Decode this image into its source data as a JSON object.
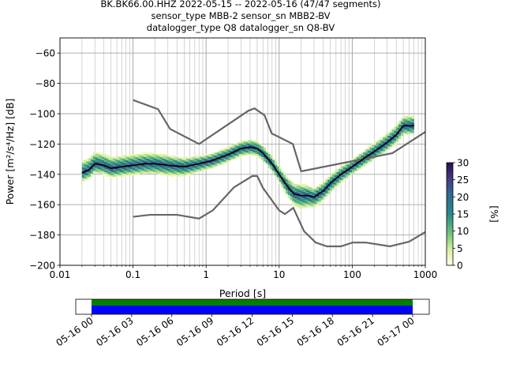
{
  "chart_data": {
    "type": "heatmap",
    "title_lines": [
      "BK.BK66.00.HHZ   2022-05-15 -- 2022-05-16  (47/47 segments)",
      "sensor_type MBB-2 sensor_sn MBB2-BV",
      "datalogger_type Q8 datalogger_sn Q8-BV"
    ],
    "xlabel": "Period [s]",
    "ylabel": "Power [m²/s⁴/Hz] [dB]",
    "xscale": "log",
    "xlim": [
      0.01,
      1000
    ],
    "ylim": [
      -200,
      -50
    ],
    "x_ticks": [
      0.01,
      0.1,
      1,
      10,
      100,
      1000
    ],
    "x_tick_labels": [
      "0.01",
      "0.1",
      "1",
      "10",
      "100",
      "1000"
    ],
    "y_ticks": [
      -200,
      -180,
      -160,
      -140,
      -120,
      -100,
      -80,
      -60
    ],
    "y_tick_labels": [
      "−200",
      "−180",
      "−160",
      "−140",
      "−120",
      "−100",
      "−80",
      "−60"
    ],
    "grid": true,
    "colorbar": {
      "label": "[%]",
      "min": 0,
      "max": 30,
      "ticks": [
        0,
        5,
        10,
        15,
        20,
        25,
        30
      ],
      "tick_labels": [
        "0",
        "5",
        "10",
        "15",
        "20",
        "25",
        "30"
      ]
    },
    "mode_line": [
      [
        0.02,
        -139
      ],
      [
        0.025,
        -137
      ],
      [
        0.03,
        -133
      ],
      [
        0.04,
        -134
      ],
      [
        0.05,
        -136
      ],
      [
        0.07,
        -135
      ],
      [
        0.1,
        -134
      ],
      [
        0.15,
        -133
      ],
      [
        0.2,
        -133
      ],
      [
        0.3,
        -134
      ],
      [
        0.5,
        -135
      ],
      [
        0.8,
        -133
      ],
      [
        1.2,
        -131
      ],
      [
        2,
        -127
      ],
      [
        3,
        -123
      ],
      [
        4,
        -122
      ],
      [
        5,
        -123
      ],
      [
        6,
        -126
      ],
      [
        8,
        -133
      ],
      [
        10,
        -140
      ],
      [
        13,
        -148
      ],
      [
        16,
        -153
      ],
      [
        20,
        -154
      ],
      [
        25,
        -154
      ],
      [
        30,
        -155
      ],
      [
        40,
        -151
      ],
      [
        50,
        -146
      ],
      [
        70,
        -140
      ],
      [
        100,
        -135
      ],
      [
        150,
        -129
      ],
      [
        200,
        -125
      ],
      [
        300,
        -119
      ],
      [
        400,
        -114
      ],
      [
        500,
        -108
      ],
      [
        700,
        -108
      ]
    ],
    "nhnm": [
      [
        0.1,
        -91
      ],
      [
        0.22,
        -97
      ],
      [
        0.32,
        -110
      ],
      [
        0.8,
        -120
      ],
      [
        3.8,
        -98
      ],
      [
        4.6,
        -96.5
      ],
      [
        6.3,
        -101
      ],
      [
        7.9,
        -113
      ],
      [
        15.4,
        -120
      ],
      [
        20,
        -138
      ],
      [
        354.8,
        -126
      ],
      [
        1000,
        -112
      ]
    ],
    "nlnm": [
      [
        0.1,
        -168
      ],
      [
        0.17,
        -166.7
      ],
      [
        0.4,
        -166.7
      ],
      [
        0.8,
        -169.2
      ],
      [
        1.24,
        -163.7
      ],
      [
        2.4,
        -148.6
      ],
      [
        4.3,
        -141.1
      ],
      [
        5,
        -141.1
      ],
      [
        6,
        -149
      ],
      [
        10,
        -163.8
      ],
      [
        12,
        -166.2
      ],
      [
        15.6,
        -162.1
      ],
      [
        21.9,
        -177.5
      ],
      [
        31.6,
        -185
      ],
      [
        45,
        -187.5
      ],
      [
        70,
        -187.5
      ],
      [
        101,
        -185
      ],
      [
        154,
        -185
      ],
      [
        328,
        -187.5
      ],
      [
        600,
        -184.4
      ],
      [
        1000,
        -178
      ]
    ],
    "density_band": {
      "spread_db": 4,
      "upper_extra": [
        [
          0.03,
          4
        ],
        [
          0.3,
          3
        ],
        [
          1,
          1
        ],
        [
          10,
          1
        ],
        [
          20,
          4
        ],
        [
          30,
          2
        ],
        [
          100,
          1
        ],
        [
          700,
          3
        ]
      ],
      "lower_extra": [
        [
          0.03,
          2
        ],
        [
          0.3,
          3
        ],
        [
          1,
          1
        ],
        [
          10,
          1
        ],
        [
          20,
          5
        ],
        [
          30,
          3
        ],
        [
          100,
          1
        ],
        [
          700,
          2
        ]
      ]
    },
    "timeline": {
      "tick_labels": [
        "05-16 00",
        "05-16 03",
        "05-16 06",
        "05-16 09",
        "05-16 12",
        "05-16 15",
        "05-16 18",
        "05-16 21",
        "05-17 00"
      ],
      "data_color": "#0000ff",
      "used_color": "#008000"
    }
  }
}
